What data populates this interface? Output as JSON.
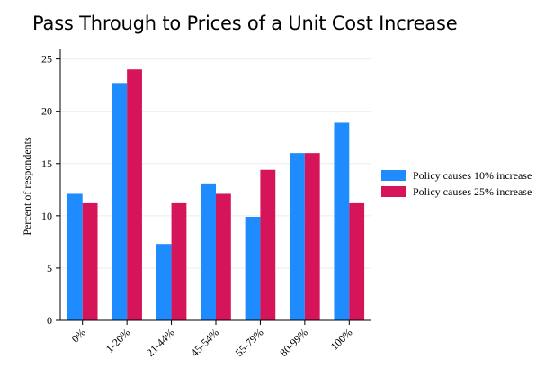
{
  "page": {
    "title": "Pass Through to Prices of a Unit Cost Increase"
  },
  "chart_data": {
    "type": "bar",
    "title": "Pass Through to Prices of a Unit Cost Increase",
    "xlabel": "",
    "ylabel": "Percent of respondents",
    "ylim": [
      0,
      26
    ],
    "yticks": [
      0,
      5,
      10,
      15,
      20,
      25
    ],
    "grid": true,
    "categories": [
      "0%",
      "1-20%",
      "21-44%",
      "45-54%",
      "55-79%",
      "80-99%",
      "100%"
    ],
    "series": [
      {
        "name": "Policy causes 10% increase",
        "color": "#1e8bff",
        "values": [
          12.1,
          22.7,
          7.3,
          13.1,
          9.9,
          16.0,
          18.9
        ]
      },
      {
        "name": "Policy causes 25% increase",
        "color": "#d6145a",
        "values": [
          11.2,
          24.0,
          11.2,
          12.1,
          14.4,
          16.0,
          11.2
        ]
      }
    ],
    "legend_position": "right"
  }
}
